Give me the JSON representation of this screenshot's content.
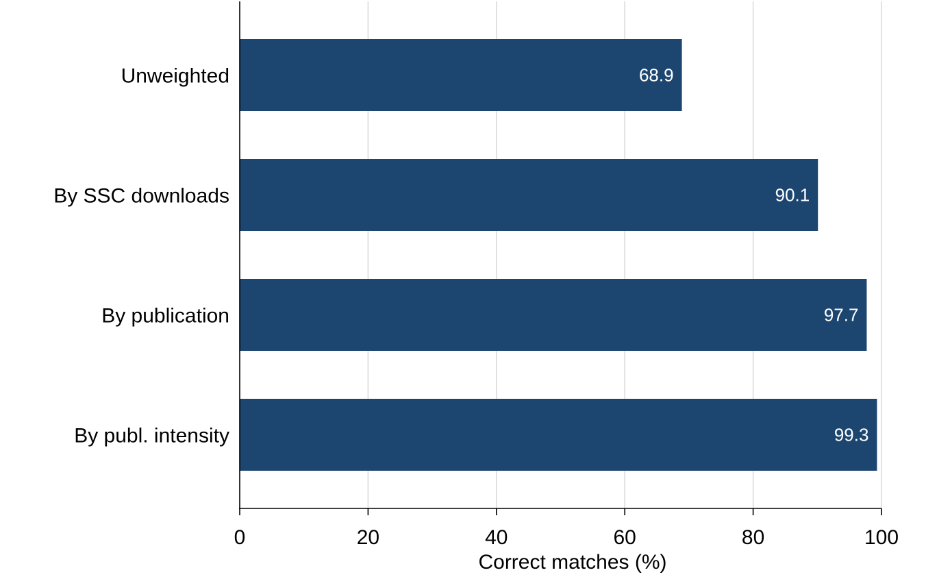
{
  "chart_data": {
    "type": "bar",
    "orientation": "horizontal",
    "categories": [
      "Unweighted",
      "By SSC downloads",
      "By publication",
      "By publ. intensity"
    ],
    "values": [
      68.9,
      90.1,
      97.7,
      99.3
    ],
    "data_labels": [
      "68.9",
      "90.1",
      "97.7",
      "99.3"
    ],
    "title": "",
    "xlabel": "Correct matches (%)",
    "ylabel": "",
    "xlim": [
      0,
      100
    ],
    "xticks": [
      0,
      20,
      40,
      60,
      80,
      100
    ],
    "grid": true,
    "legend": "none",
    "bar_color": "#1c4670",
    "label_color": "#ffffff"
  }
}
